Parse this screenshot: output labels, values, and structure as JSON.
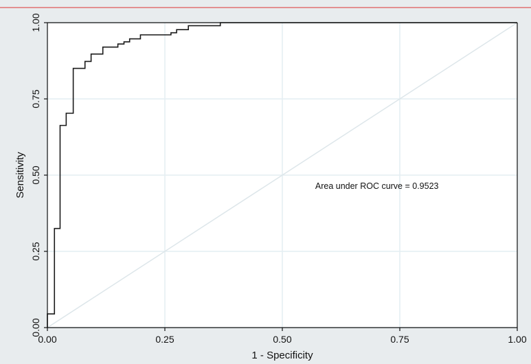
{
  "chart_data": {
    "type": "line",
    "xlabel": "1 - Specificity",
    "ylabel": "Sensitivity",
    "xlim": [
      0,
      1
    ],
    "ylim": [
      0,
      1
    ],
    "x_ticks": [
      "0.00",
      "0.25",
      "0.50",
      "0.75",
      "1.00"
    ],
    "y_ticks": [
      "0.00",
      "0.25",
      "0.50",
      "0.75",
      "1.00"
    ],
    "grid": true,
    "annotation": "Area under ROC curve = 0.9523",
    "series": [
      {
        "values_xy": [
          [
            0.0,
            0.0
          ],
          [
            0.0,
            0.045
          ],
          [
            0.015,
            0.045
          ],
          [
            0.015,
            0.325
          ],
          [
            0.027,
            0.325
          ],
          [
            0.027,
            0.663
          ],
          [
            0.04,
            0.663
          ],
          [
            0.04,
            0.703
          ],
          [
            0.055,
            0.703
          ],
          [
            0.055,
            0.85
          ],
          [
            0.08,
            0.85
          ],
          [
            0.08,
            0.873
          ],
          [
            0.093,
            0.873
          ],
          [
            0.093,
            0.897
          ],
          [
            0.118,
            0.897
          ],
          [
            0.118,
            0.92
          ],
          [
            0.15,
            0.92
          ],
          [
            0.15,
            0.93
          ],
          [
            0.163,
            0.93
          ],
          [
            0.163,
            0.937
          ],
          [
            0.175,
            0.937
          ],
          [
            0.175,
            0.947
          ],
          [
            0.198,
            0.947
          ],
          [
            0.198,
            0.96
          ],
          [
            0.263,
            0.96
          ],
          [
            0.263,
            0.967
          ],
          [
            0.275,
            0.967
          ],
          [
            0.275,
            0.977
          ],
          [
            0.3,
            0.977
          ],
          [
            0.3,
            0.99
          ],
          [
            0.368,
            0.99
          ],
          [
            0.368,
            1.0
          ],
          [
            1.0,
            1.0
          ]
        ]
      },
      {
        "values_xy": [
          [
            0,
            0
          ],
          [
            1,
            1
          ]
        ]
      }
    ],
    "colors": {
      "background": "#e8ecee",
      "plot_area": "#ffffff",
      "grid": "#e4eef2",
      "curve": "#1a1a1a",
      "reference_line": "#dde6ea",
      "top_border": "#e07070"
    }
  }
}
